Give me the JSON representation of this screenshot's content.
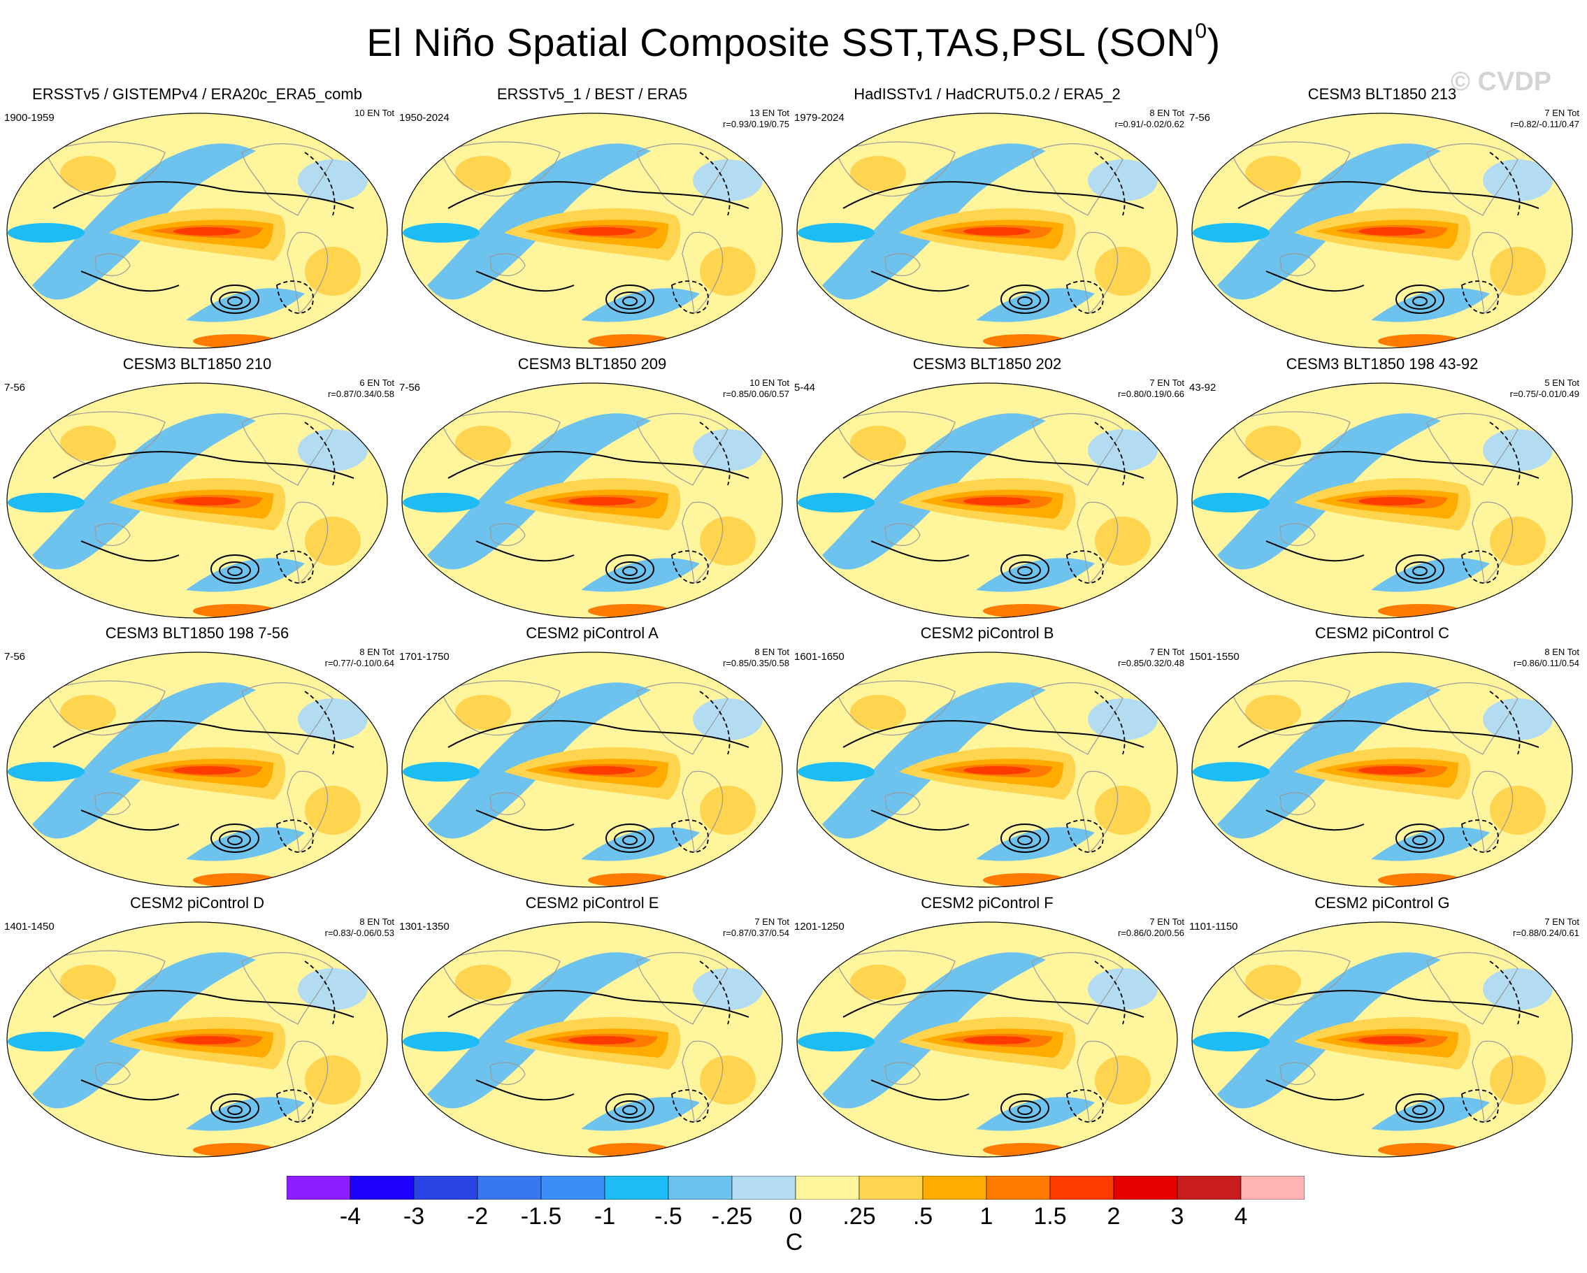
{
  "title": "El Niño Spatial Composite SST,TAS,PSL (SON",
  "title_superscript": "0",
  "title_close": ")",
  "watermark": "© CVDP",
  "colors": {
    "levels": [
      "#8c1eff",
      "#1e00ff",
      "#2a45e6",
      "#3778ee",
      "#3a8ef5",
      "#1ebcf5",
      "#6ec2ee",
      "#b3dcf2",
      "#fff59d",
      "#ffd54f",
      "#ffab00",
      "#ff7a00",
      "#ff3a00",
      "#e60000",
      "#c91c1c",
      "#ffb3b3"
    ],
    "land_outline": "#9a9a9a",
    "contour": "#000000"
  },
  "colorbar": {
    "labels": [
      "-4",
      "-3",
      "-2",
      "-1.5",
      "-1",
      "-.5",
      "-.25",
      "0",
      ".25",
      ".5",
      "1",
      "1.5",
      "2",
      "3",
      "4"
    ],
    "unit": "C"
  },
  "panels": [
    {
      "title": "ERSSTv5 / GISTEMPv4 / ERA20c_ERA5_comb",
      "years": "1900-1959",
      "count": "10 EN Tot",
      "corr": ""
    },
    {
      "title": "ERSSTv5_1 / BEST / ERA5",
      "years": "1950-2024",
      "count": "13 EN Tot",
      "corr": "r=0.93/0.19/0.75"
    },
    {
      "title": "HadISSTv1 / HadCRUT5.0.2 / ERA5_2",
      "years": "1979-2024",
      "count": "8 EN Tot",
      "corr": "r=0.91/-0.02/0.62"
    },
    {
      "title": "CESM3 BLT1850 213",
      "years": "7-56",
      "count": "7 EN Tot",
      "corr": "r=0.82/-0.11/0.47"
    },
    {
      "title": "CESM3 BLT1850 210",
      "years": "7-56",
      "count": "6 EN Tot",
      "corr": "r=0.87/0.34/0.58"
    },
    {
      "title": "CESM3 BLT1850 209",
      "years": "7-56",
      "count": "10 EN Tot",
      "corr": "r=0.85/0.06/0.57"
    },
    {
      "title": "CESM3 BLT1850 202",
      "years": "5-44",
      "count": "7 EN Tot",
      "corr": "r=0.80/0.19/0.66"
    },
    {
      "title": "CESM3 BLT1850 198 43-92",
      "years": "43-92",
      "count": "5 EN Tot",
      "corr": "r=0.75/-0.01/0.49"
    },
    {
      "title": "CESM3 BLT1850 198 7-56",
      "years": "7-56",
      "count": "8 EN Tot",
      "corr": "r=0.77/-0.10/0.64"
    },
    {
      "title": "CESM2 piControl A",
      "years": "1701-1750",
      "count": "8 EN Tot",
      "corr": "r=0.85/0.35/0.58"
    },
    {
      "title": "CESM2 piControl B",
      "years": "1601-1650",
      "count": "7 EN Tot",
      "corr": "r=0.85/0.32/0.48"
    },
    {
      "title": "CESM2 piControl C",
      "years": "1501-1550",
      "count": "8 EN Tot",
      "corr": "r=0.86/0.11/0.54"
    },
    {
      "title": "CESM2 piControl D",
      "years": "1401-1450",
      "count": "8 EN Tot",
      "corr": "r=0.83/-0.06/0.53"
    },
    {
      "title": "CESM2 piControl E",
      "years": "1301-1350",
      "count": "7 EN Tot",
      "corr": "r=0.87/0.37/0.54"
    },
    {
      "title": "CESM2 piControl F",
      "years": "1201-1250",
      "count": "7 EN Tot",
      "corr": "r=0.86/0.20/0.56"
    },
    {
      "title": "CESM2 piControl G",
      "years": "1101-1150",
      "count": "7 EN Tot",
      "corr": "r=0.88/0.24/0.61"
    }
  ]
}
